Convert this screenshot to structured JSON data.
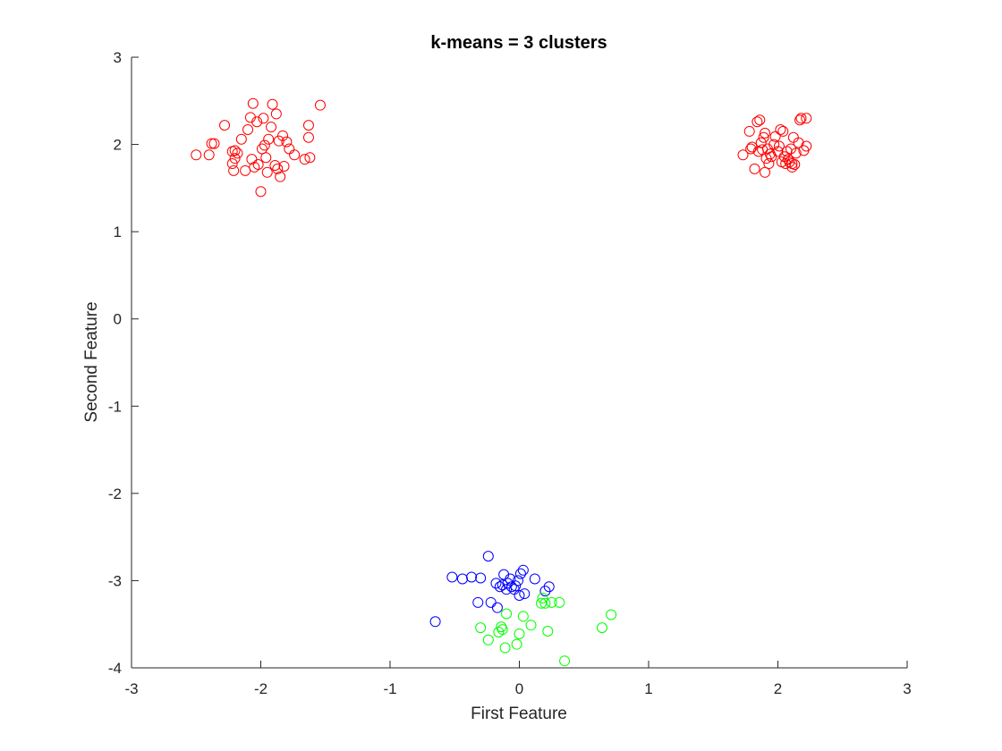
{
  "chart_data": {
    "type": "scatter",
    "title": "k-means = 3 clusters",
    "xlabel": "First Feature",
    "ylabel": "Second Feature",
    "xlim": [
      -3,
      3
    ],
    "ylim": [
      -4,
      3
    ],
    "xticks": [
      -3,
      -2,
      -1,
      0,
      1,
      2,
      3
    ],
    "yticks": [
      -4,
      -3,
      -2,
      -1,
      0,
      1,
      2,
      3
    ],
    "grid": false,
    "marker": "circle-open",
    "series": [
      {
        "color": "#ff0000",
        "points": [
          [
            -2.5,
            1.88
          ],
          [
            -2.4,
            1.88
          ],
          [
            -2.38,
            2.01
          ],
          [
            -2.36,
            2.01
          ],
          [
            -2.28,
            2.22
          ],
          [
            -2.22,
            1.92
          ],
          [
            -2.22,
            1.78
          ],
          [
            -2.21,
            1.7
          ],
          [
            -2.2,
            1.84
          ],
          [
            -2.2,
            1.93
          ],
          [
            -2.18,
            1.9
          ],
          [
            -2.15,
            2.06
          ],
          [
            -2.12,
            1.7
          ],
          [
            -2.1,
            2.17
          ],
          [
            -2.08,
            2.31
          ],
          [
            -2.07,
            1.83
          ],
          [
            -2.06,
            2.47
          ],
          [
            -2.05,
            1.74
          ],
          [
            -2.03,
            2.26
          ],
          [
            -2.02,
            1.77
          ],
          [
            -2.0,
            1.46
          ],
          [
            -1.99,
            1.95
          ],
          [
            -1.98,
            2.3
          ],
          [
            -1.97,
            1.99
          ],
          [
            -1.96,
            1.85
          ],
          [
            -1.95,
            1.68
          ],
          [
            -1.94,
            2.06
          ],
          [
            -1.92,
            2.2
          ],
          [
            -1.91,
            2.46
          ],
          [
            -1.89,
            1.76
          ],
          [
            -1.88,
            2.35
          ],
          [
            -1.87,
            1.72
          ],
          [
            -1.86,
            2.04
          ],
          [
            -1.85,
            1.63
          ],
          [
            -1.83,
            2.1
          ],
          [
            -1.82,
            1.75
          ],
          [
            -1.8,
            2.03
          ],
          [
            -1.78,
            1.95
          ],
          [
            -1.74,
            1.88
          ],
          [
            -1.66,
            1.83
          ],
          [
            -1.63,
            2.22
          ],
          [
            -1.63,
            2.08
          ],
          [
            -1.62,
            1.85
          ],
          [
            -1.54,
            2.45
          ],
          [
            1.73,
            1.88
          ],
          [
            1.78,
            2.15
          ],
          [
            1.79,
            1.95
          ],
          [
            1.8,
            1.97
          ],
          [
            1.82,
            1.72
          ],
          [
            1.84,
            2.26
          ],
          [
            1.85,
            1.92
          ],
          [
            1.86,
            2.28
          ],
          [
            1.87,
            2.02
          ],
          [
            1.88,
            1.94
          ],
          [
            1.89,
            2.08
          ],
          [
            1.9,
            1.68
          ],
          [
            1.9,
            2.13
          ],
          [
            1.91,
            1.84
          ],
          [
            1.92,
            1.95
          ],
          [
            1.93,
            1.78
          ],
          [
            1.94,
            1.89
          ],
          [
            1.95,
            1.86
          ],
          [
            1.97,
            2.0
          ],
          [
            1.98,
            2.09
          ],
          [
            2.0,
            1.92
          ],
          [
            2.01,
            1.98
          ],
          [
            2.02,
            2.17
          ],
          [
            2.03,
            1.8
          ],
          [
            2.04,
            2.15
          ],
          [
            2.05,
            1.86
          ],
          [
            2.06,
            1.78
          ],
          [
            2.07,
            1.92
          ],
          [
            2.08,
            1.83
          ],
          [
            2.09,
            1.8
          ],
          [
            2.1,
            1.95
          ],
          [
            2.11,
            1.78
          ],
          [
            2.11,
            1.74
          ],
          [
            2.12,
            2.08
          ],
          [
            2.13,
            1.77
          ],
          [
            2.14,
            1.9
          ],
          [
            2.16,
            2.02
          ],
          [
            2.17,
            2.28
          ],
          [
            2.18,
            2.3
          ],
          [
            2.2,
            1.93
          ],
          [
            2.22,
            2.3
          ],
          [
            2.22,
            1.98
          ]
        ]
      },
      {
        "color": "#0000ff",
        "points": [
          [
            -0.65,
            -3.47
          ],
          [
            -0.52,
            -2.96
          ],
          [
            -0.44,
            -2.98
          ],
          [
            -0.37,
            -2.96
          ],
          [
            -0.32,
            -3.25
          ],
          [
            -0.3,
            -2.97
          ],
          [
            -0.24,
            -2.72
          ],
          [
            -0.22,
            -3.25
          ],
          [
            -0.18,
            -3.03
          ],
          [
            -0.17,
            -3.31
          ],
          [
            -0.15,
            -3.07
          ],
          [
            -0.13,
            -3.05
          ],
          [
            -0.12,
            -2.93
          ],
          [
            -0.1,
            -3.1
          ],
          [
            -0.09,
            -3.03
          ],
          [
            -0.07,
            -2.98
          ],
          [
            -0.06,
            -3.07
          ],
          [
            -0.04,
            -3.1
          ],
          [
            -0.03,
            -3.06
          ],
          [
            -0.01,
            -3.0
          ],
          [
            0.0,
            -3.17
          ],
          [
            0.01,
            -2.92
          ],
          [
            0.03,
            -2.88
          ],
          [
            0.04,
            -3.15
          ],
          [
            0.12,
            -2.98
          ],
          [
            0.2,
            -3.12
          ],
          [
            0.23,
            -3.07
          ]
        ]
      },
      {
        "color": "#00ff00",
        "points": [
          [
            -0.3,
            -3.54
          ],
          [
            -0.24,
            -3.68
          ],
          [
            -0.16,
            -3.59
          ],
          [
            -0.14,
            -3.53
          ],
          [
            -0.13,
            -3.56
          ],
          [
            -0.11,
            -3.77
          ],
          [
            -0.1,
            -3.38
          ],
          [
            -0.02,
            -3.73
          ],
          [
            0.0,
            -3.61
          ],
          [
            0.03,
            -3.41
          ],
          [
            0.09,
            -3.51
          ],
          [
            0.17,
            -3.26
          ],
          [
            0.18,
            -3.2
          ],
          [
            0.2,
            -3.26
          ],
          [
            0.22,
            -3.58
          ],
          [
            0.25,
            -3.25
          ],
          [
            0.31,
            -3.25
          ],
          [
            0.35,
            -3.92
          ],
          [
            0.64,
            -3.54
          ],
          [
            0.71,
            -3.39
          ]
        ]
      }
    ]
  }
}
